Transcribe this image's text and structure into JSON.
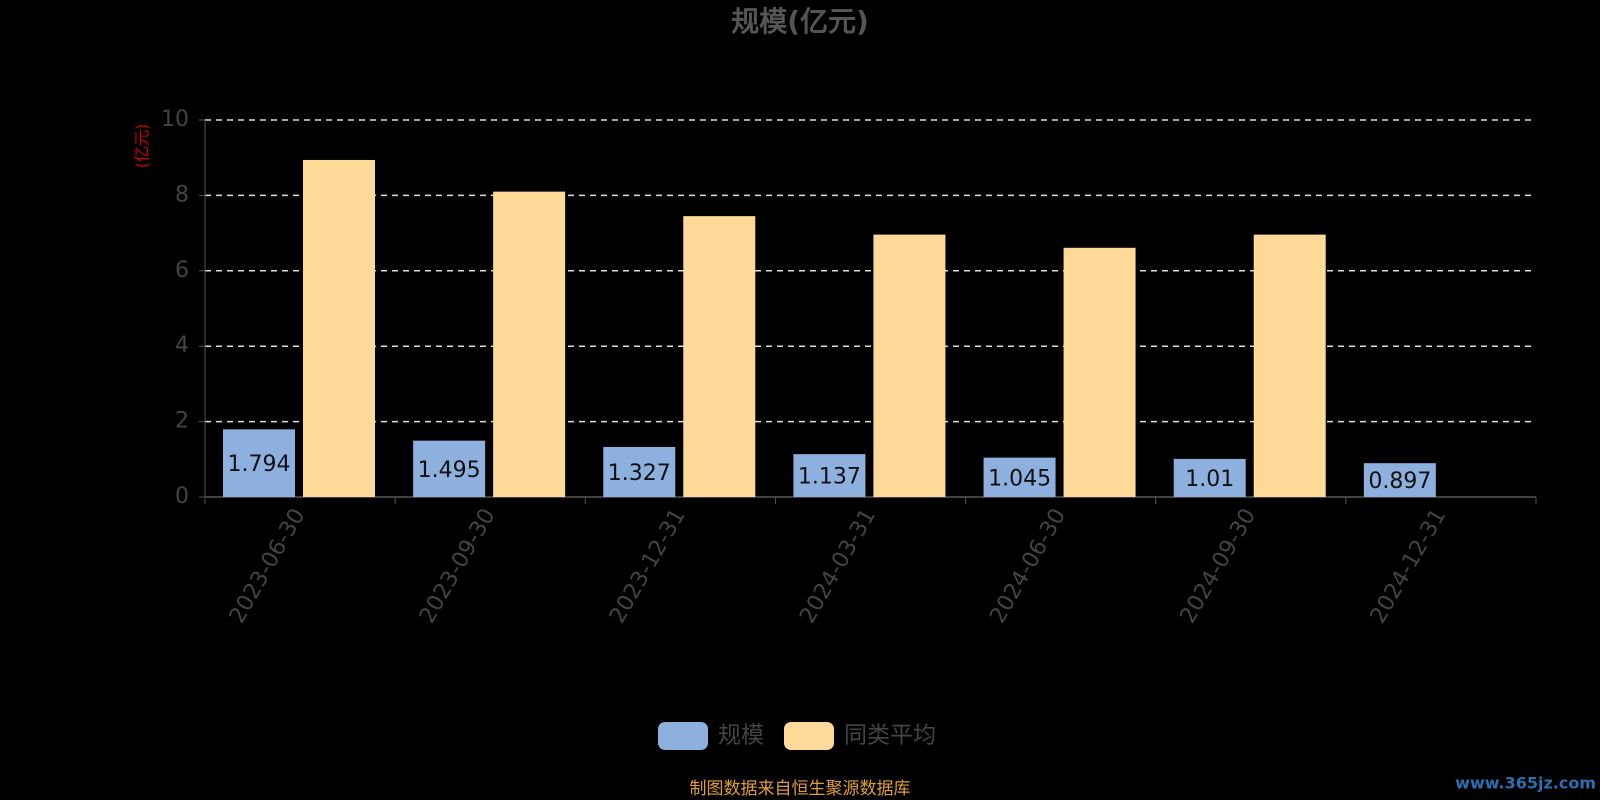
{
  "chart_data": {
    "type": "bar",
    "title": "规模(亿元)",
    "y_axis_label": "(亿元)",
    "categories": [
      "2023-06-30",
      "2023-09-30",
      "2023-12-31",
      "2024-03-31",
      "2024-06-30",
      "2024-09-30",
      "2024-12-31"
    ],
    "series": [
      {
        "name": "规模",
        "color": "#8eb0de",
        "values": [
          1.794,
          1.495,
          1.327,
          1.137,
          1.045,
          1.01,
          0.897
        ],
        "show_labels": true
      },
      {
        "name": "同类平均",
        "color": "#ffd997",
        "values": [
          8.94,
          8.1,
          7.45,
          6.96,
          6.61,
          6.96,
          null
        ],
        "show_labels": false
      }
    ],
    "ylim": [
      0,
      10
    ],
    "yticks": [
      0,
      2,
      4,
      6,
      8,
      10
    ],
    "grid": true,
    "legend_position": "bottom",
    "source_note": "制图数据来自恒生聚源数据库",
    "watermark": "www.365jz.com"
  }
}
